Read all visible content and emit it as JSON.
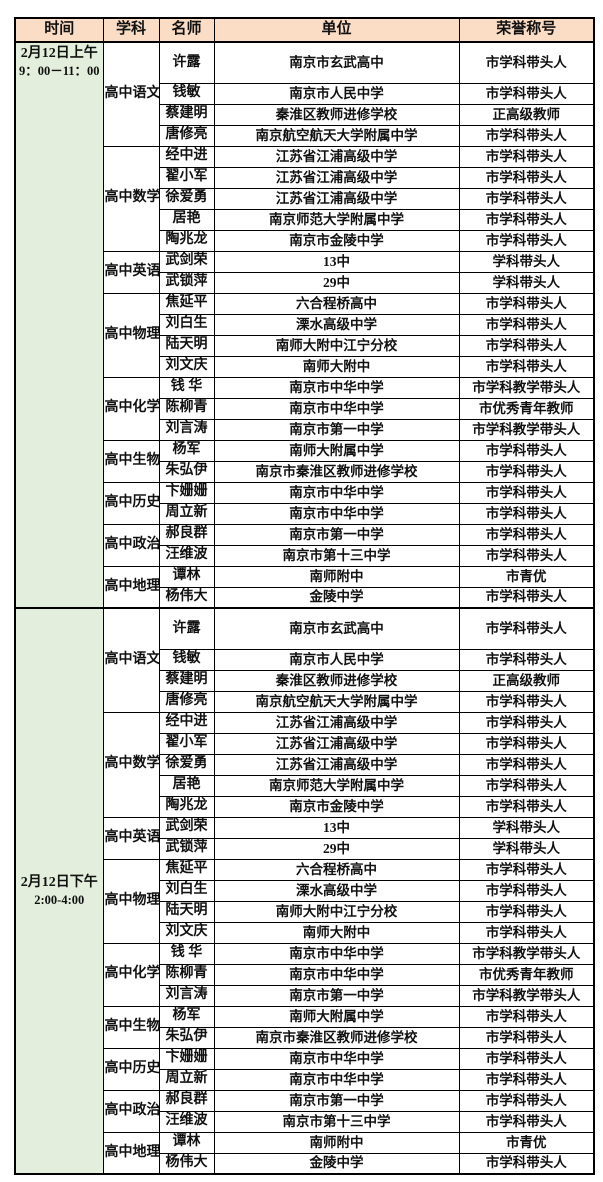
{
  "colors": {
    "header_bg": "#fbdcc5",
    "time_bg": "#e3efdc",
    "border": "#000000",
    "cell_bg": "#ffffff"
  },
  "table": {
    "columns": [
      "时间",
      "学科",
      "名师",
      "单位",
      "荣誉称号"
    ],
    "sessions": [
      {
        "time": {
          "date": "2月12日上午",
          "hours": "9：00－11：00"
        },
        "groups": [
          {
            "subject": "高中语文",
            "rows": [
              [
                "许露",
                "南京市玄武高中",
                "市学科带头人"
              ],
              [
                "钱敏",
                "南京市人民中学",
                "市学科带头人"
              ],
              [
                "蔡建明",
                "秦淮区教师进修学校",
                "正高级教师"
              ],
              [
                "唐修亮",
                "南京航空航天大学附属中学",
                "市学科带头人"
              ]
            ]
          },
          {
            "subject": "高中数学",
            "rows": [
              [
                "经中进",
                "江苏省江浦高级中学",
                "市学科带头人"
              ],
              [
                "翟小军",
                "江苏省江浦高级中学",
                "市学科带头人"
              ],
              [
                "徐爱勇",
                "江苏省江浦高级中学",
                "市学科带头人"
              ],
              [
                "居艳",
                "南京师范大学附属中学",
                "市学科带头人"
              ],
              [
                "陶兆龙",
                "南京市金陵中学",
                "市学科带头人"
              ]
            ]
          },
          {
            "subject": "高中英语",
            "rows": [
              [
                "武剑荣",
                "13中",
                "学科带头人"
              ],
              [
                "武锁萍",
                "29中",
                "学科带头人"
              ]
            ]
          },
          {
            "subject": "高中物理",
            "rows": [
              [
                "焦延平",
                "六合程桥高中",
                "市学科带头人"
              ],
              [
                "刘白生",
                "溧水高级中学",
                "市学科带头人"
              ],
              [
                "陆天明",
                "南师大附中江宁分校",
                "市学科带头人"
              ],
              [
                "刘文庆",
                "南师大附中",
                "市学科带头人"
              ]
            ]
          },
          {
            "subject": "高中化学",
            "rows": [
              [
                "钱 华",
                "南京市中华中学",
                "市学科教学带头人"
              ],
              [
                "陈柳青",
                "南京市中华中学",
                "市优秀青年教师"
              ],
              [
                "刘言涛",
                "南京市第一中学",
                "市学科教学带头人"
              ]
            ]
          },
          {
            "subject": "高中生物",
            "rows": [
              [
                "杨军",
                "南师大附属中学",
                "市学科带头人"
              ],
              [
                "朱弘伊",
                "南京市秦淮区教师进修学校",
                "市学科带头人"
              ]
            ]
          },
          {
            "subject": "高中历史",
            "rows": [
              [
                "卞姗姗",
                "南京市中华中学",
                "市学科带头人"
              ],
              [
                "周立新",
                "南京市中华中学",
                "市学科带头人"
              ]
            ]
          },
          {
            "subject": "高中政治",
            "rows": [
              [
                "郝良群",
                "南京市第一中学",
                "市学科带头人"
              ],
              [
                "汪维波",
                "南京市第十三中学",
                "市学科带头人"
              ]
            ]
          },
          {
            "subject": "高中地理",
            "rows": [
              [
                "谭林",
                "南师附中",
                "市青优"
              ],
              [
                "杨伟大",
                "金陵中学",
                "市学科带头人"
              ]
            ]
          }
        ]
      },
      {
        "time": {
          "date": "2月12日下午",
          "hours": "2:00-4:00"
        },
        "groups": [
          {
            "subject": "高中语文",
            "rows": [
              [
                "许露",
                "南京市玄武高中",
                "市学科带头人"
              ],
              [
                "钱敏",
                "南京市人民中学",
                "市学科带头人"
              ],
              [
                "蔡建明",
                "秦淮区教师进修学校",
                "正高级教师"
              ],
              [
                "唐修亮",
                "南京航空航天大学附属中学",
                "市学科带头人"
              ]
            ]
          },
          {
            "subject": "高中数学",
            "rows": [
              [
                "经中进",
                "江苏省江浦高级中学",
                "市学科带头人"
              ],
              [
                "翟小军",
                "江苏省江浦高级中学",
                "市学科带头人"
              ],
              [
                "徐爱勇",
                "江苏省江浦高级中学",
                "市学科带头人"
              ],
              [
                "居艳",
                "南京师范大学附属中学",
                "市学科带头人"
              ],
              [
                "陶兆龙",
                "南京市金陵中学",
                "市学科带头人"
              ]
            ]
          },
          {
            "subject": "高中英语",
            "rows": [
              [
                "武剑荣",
                "13中",
                "学科带头人"
              ],
              [
                "武锁萍",
                "29中",
                "学科带头人"
              ]
            ]
          },
          {
            "subject": "高中物理",
            "rows": [
              [
                "焦延平",
                "六合程桥高中",
                "市学科带头人"
              ],
              [
                "刘白生",
                "溧水高级中学",
                "市学科带头人"
              ],
              [
                "陆天明",
                "南师大附中江宁分校",
                "市学科带头人"
              ],
              [
                "刘文庆",
                "南师大附中",
                "市学科带头人"
              ]
            ]
          },
          {
            "subject": "高中化学",
            "rows": [
              [
                "钱 华",
                "南京市中华中学",
                "市学科教学带头人"
              ],
              [
                "陈柳青",
                "南京市中华中学",
                "市优秀青年教师"
              ],
              [
                "刘言涛",
                "南京市第一中学",
                "市学科教学带头人"
              ]
            ]
          },
          {
            "subject": "高中生物",
            "rows": [
              [
                "杨军",
                "南师大附属中学",
                "市学科带头人"
              ],
              [
                "朱弘伊",
                "南京市秦淮区教师进修学校",
                "市学科带头人"
              ]
            ]
          },
          {
            "subject": "高中历史",
            "rows": [
              [
                "卞姗姗",
                "南京市中华中学",
                "市学科带头人"
              ],
              [
                "周立新",
                "南京市中华中学",
                "市学科带头人"
              ]
            ]
          },
          {
            "subject": "高中政治",
            "rows": [
              [
                "郝良群",
                "南京市第一中学",
                "市学科带头人"
              ],
              [
                "汪维波",
                "南京市第十三中学",
                "市学科带头人"
              ]
            ]
          },
          {
            "subject": "高中地理",
            "rows": [
              [
                "谭林",
                "南师附中",
                "市青优"
              ],
              [
                "杨伟大",
                "金陵中学",
                "市学科带头人"
              ]
            ]
          }
        ]
      }
    ]
  }
}
